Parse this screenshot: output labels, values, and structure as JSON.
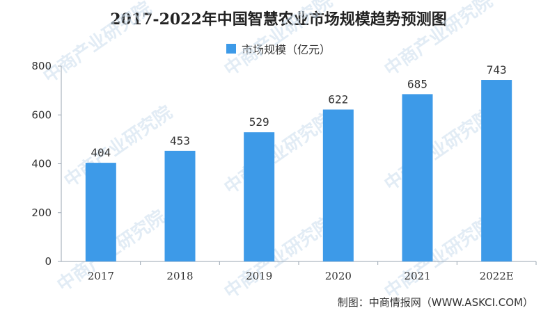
{
  "watermark_text": "中商产业研究院",
  "source_text": "制图：中商情报网（WWW.ASKCI.COM）",
  "colors": {
    "bar": "#3d9ae8",
    "axis": "#9aa6b2",
    "text": "#333333",
    "title": "#222222"
  },
  "chart_data": {
    "type": "bar",
    "title": "2017-2022年中国智慧农业市场规模趋势预测图",
    "xlabel": "",
    "ylabel": "",
    "categories": [
      "2017",
      "2018",
      "2019",
      "2020",
      "2021",
      "2022E"
    ],
    "series": [
      {
        "name": "市场规模（亿元）",
        "values": [
          404,
          453,
          529,
          622,
          685,
          743
        ]
      }
    ],
    "ylim": [
      0,
      800
    ],
    "yticks": [
      0,
      200,
      400,
      600,
      800
    ],
    "grid": false,
    "legend_position": "top-center",
    "data_labels": true
  }
}
